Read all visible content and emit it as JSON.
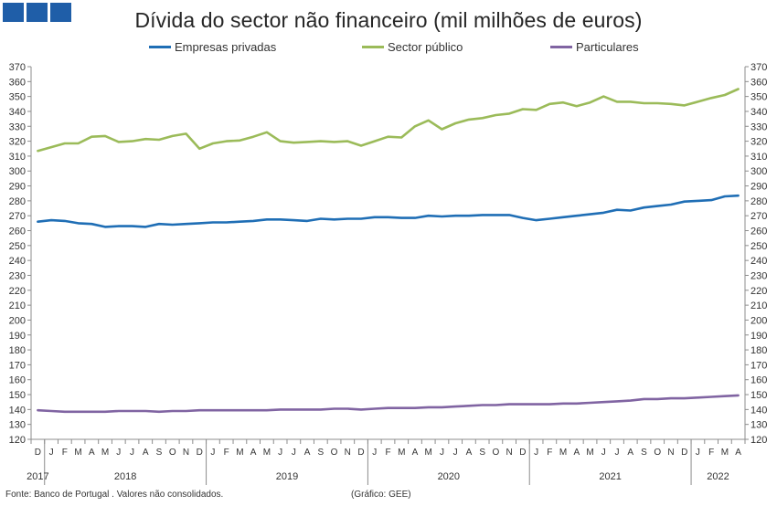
{
  "header": {
    "title": "Dívida do sector não financeiro (mil milhões de euros)"
  },
  "footer": {
    "source": "Fonte: Banco de Portugal . Valores não consolidados.",
    "credit": "(Gráfico: GEE)"
  },
  "colors": {
    "empresas": "#1f6eb5",
    "publico": "#9bbb59",
    "particulares": "#8064a2",
    "logo": "#1f5ea8"
  },
  "chart_data": {
    "type": "line",
    "title": "Dívida do sector não financeiro (mil milhões de euros)",
    "ylim": [
      120,
      370
    ],
    "y_ticks": [
      120,
      130,
      140,
      150,
      160,
      170,
      180,
      190,
      200,
      210,
      220,
      230,
      240,
      250,
      260,
      270,
      280,
      290,
      300,
      310,
      320,
      330,
      340,
      350,
      360,
      370
    ],
    "grid": false,
    "legend_position": "top",
    "secondary_y_axis": true,
    "x": [
      "D",
      "J",
      "F",
      "M",
      "A",
      "M",
      "J",
      "J",
      "A",
      "S",
      "O",
      "N",
      "D",
      "J",
      "F",
      "M",
      "A",
      "M",
      "J",
      "J",
      "A",
      "S",
      "O",
      "N",
      "D",
      "J",
      "F",
      "M",
      "A",
      "M",
      "J",
      "J",
      "A",
      "S",
      "O",
      "N",
      "D",
      "J",
      "F",
      "M",
      "A",
      "M",
      "J",
      "J",
      "A",
      "S",
      "O",
      "N",
      "D",
      "J",
      "F",
      "M",
      "A"
    ],
    "year_labels": [
      "2017",
      "2018",
      "2019",
      "2020",
      "2021",
      "2022"
    ],
    "series": [
      {
        "name": "Empresas privadas",
        "values": [
          266,
          267,
          266.5,
          265,
          264.5,
          262.5,
          263,
          263,
          262.5,
          264.5,
          264,
          264.5,
          265,
          265.5,
          265.5,
          266,
          266.5,
          267.5,
          267.5,
          267,
          266.5,
          268,
          267.5,
          268,
          268,
          269,
          269,
          268.5,
          268.5,
          270,
          269.5,
          270,
          270,
          270.5,
          270.5,
          270.5,
          268.5,
          267,
          268,
          269,
          270,
          271,
          272,
          274,
          273.5,
          275.5,
          276.5,
          277.5,
          279.5,
          280,
          280.5,
          283,
          283.5
        ]
      },
      {
        "name": "Sector público",
        "values": [
          313.5,
          316,
          318.5,
          318.5,
          323,
          323.5,
          319.5,
          320,
          321.5,
          321,
          323.5,
          325,
          315,
          318.5,
          320,
          320.5,
          323,
          326,
          320,
          319,
          319.5,
          320,
          319.5,
          320,
          317,
          320,
          323,
          322.5,
          330,
          334,
          328,
          332,
          334.5,
          335.5,
          337.5,
          338.5,
          341.5,
          341,
          345,
          346,
          343.5,
          346,
          350,
          346.5,
          346.5,
          345.5,
          345.5,
          345,
          344,
          346.5,
          349,
          351,
          355
        ]
      },
      {
        "name": "Particulares",
        "values": [
          139.5,
          139,
          138.5,
          138.5,
          138.5,
          138.5,
          139,
          139,
          139,
          138.5,
          139,
          139,
          139.5,
          139.5,
          139.5,
          139.5,
          139.5,
          139.5,
          140,
          140,
          140,
          140,
          140.5,
          140.5,
          140,
          140.5,
          141,
          141,
          141,
          141.5,
          141.5,
          142,
          142.5,
          143,
          143,
          143.5,
          143.5,
          143.5,
          143.5,
          144,
          144,
          144.5,
          145,
          145.5,
          146,
          147,
          147,
          147.5,
          147.5,
          148,
          148.5,
          149,
          149.5
        ]
      }
    ]
  }
}
